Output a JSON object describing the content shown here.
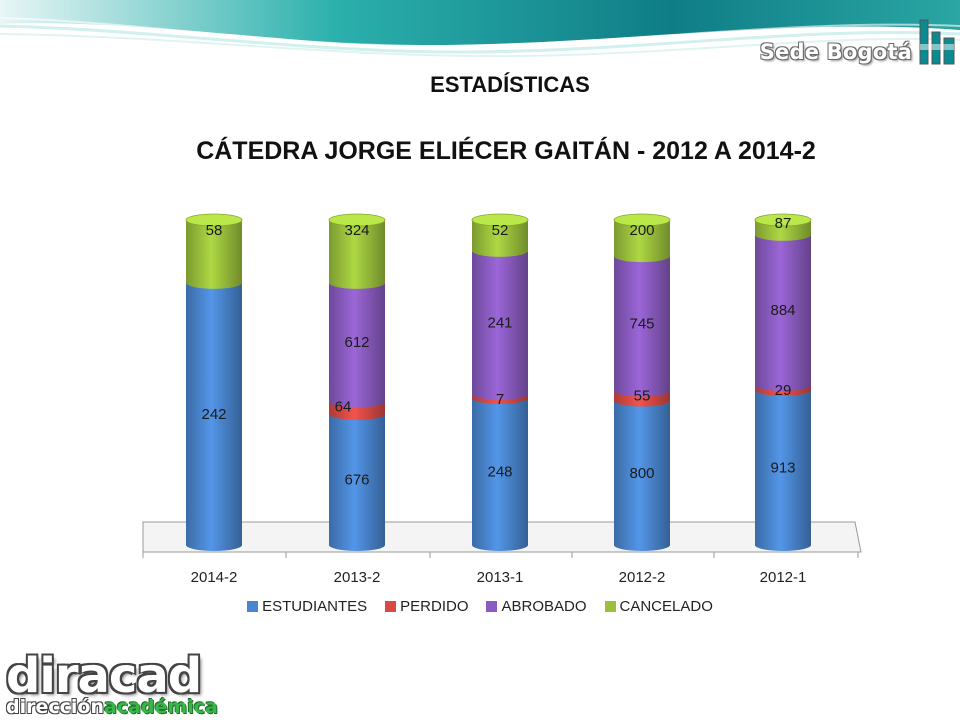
{
  "header": {
    "logo_text": "Sede Bogotá",
    "logo_icon": "unal-logo-icon"
  },
  "page_title": "ESTADÍSTICAS",
  "footer_logo": {
    "main": "diracad",
    "sub_part1": "dirección",
    "sub_part2": "académica"
  },
  "colors": {
    "estudiantes": "#4a86cf",
    "perdido": "#d84a45",
    "abrobado": "#8a5bc0",
    "cancelado": "#9bc13c",
    "banner": "#1fa3a0"
  },
  "chart_data": {
    "type": "bar",
    "stacked": true,
    "title": "CÁTEDRA JORGE ELIÉCER GAITÁN - 2012 A 2014-2",
    "categories": [
      "2014-2",
      "2013-2",
      "2013-1",
      "2012-2",
      "2012-1"
    ],
    "series": [
      {
        "name": "ESTUDIANTES",
        "values": [
          242,
          676,
          248,
          800,
          913
        ]
      },
      {
        "name": "PERDIDO",
        "values": [
          0,
          64,
          7,
          55,
          29
        ]
      },
      {
        "name": "ABROBADO",
        "values": [
          0,
          612,
          241,
          745,
          884
        ]
      },
      {
        "name": "CANCELADO",
        "values": [
          58,
          324,
          52,
          200,
          87
        ]
      }
    ],
    "normalized": true,
    "legend": "bottom",
    "grid": false
  }
}
